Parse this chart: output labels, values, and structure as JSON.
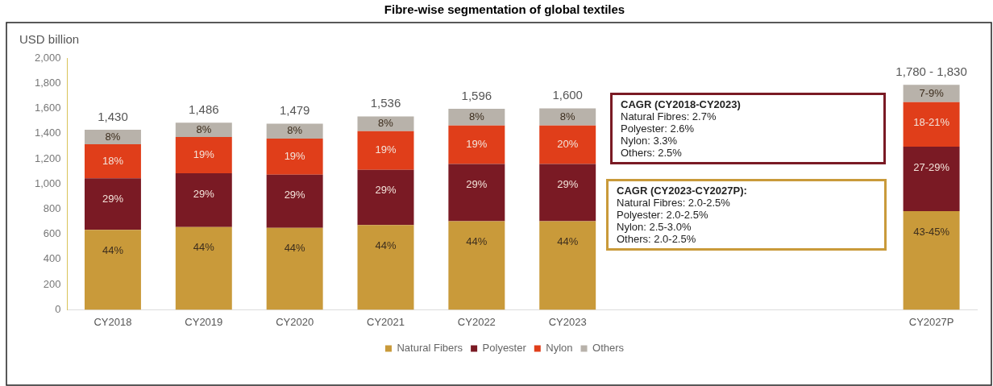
{
  "chart_data": {
    "type": "bar",
    "stacked": true,
    "title": "Fibre-wise segmentation of global textiles",
    "ylabel": "USD billion",
    "categories": [
      "CY2018",
      "CY2019",
      "CY2020",
      "CY2021",
      "CY2022",
      "CY2023",
      null,
      null,
      null,
      "CY2027P"
    ],
    "series": [
      {
        "name": "Natural Fibers",
        "color": "#c99a3a",
        "values": [
          634,
          657,
          650,
          673,
          703,
          703,
          null,
          null,
          null,
          784
        ]
      },
      {
        "name": "Polyester",
        "color": "#7a1a24",
        "values": [
          411,
          427,
          423,
          438,
          455,
          455,
          null,
          null,
          null,
          512
        ]
      },
      {
        "name": "Nylon",
        "color": "#e03e1a",
        "values": [
          270,
          288,
          287,
          308,
          306,
          306,
          null,
          null,
          null,
          353
        ]
      },
      {
        "name": "Others",
        "color": "#b8b2aa",
        "values": [
          115,
          114,
          119,
          117,
          132,
          136,
          null,
          null,
          null,
          138
        ]
      }
    ],
    "totals": [
      "1,430",
      "1,486",
      "1,479",
      "1,536",
      "1,596",
      "1,600",
      null,
      null,
      null,
      "1,780 - 1,830"
    ],
    "ylim": [
      0,
      2000
    ],
    "yticks": [
      {
        "value": 0,
        "label": "0"
      },
      {
        "value": 200,
        "label": "200"
      },
      {
        "value": 400,
        "label": "400"
      },
      {
        "value": 600,
        "label": "600"
      },
      {
        "value": 800,
        "label": "800"
      },
      {
        "value": 1000,
        "label": "1,000"
      },
      {
        "value": 1200,
        "label": "1,200"
      },
      {
        "value": 1400,
        "label": "1,400"
      },
      {
        "value": 1600,
        "label": "1,600"
      },
      {
        "value": 1800,
        "label": "1,800"
      },
      {
        "value": 2000,
        "label": "2,000"
      }
    ],
    "grid": false,
    "legend": "bottom",
    "annotations": [
      "CAGR (CY2018-CY2023)\nNatural Fibres: 2.7%\nPolyester: 2.6%\nNylon: 3.3%\nOthers: 2.5%",
      "CAGR (CY2023-CY2027P):\nNatural Fibres: 2.0-2.5%\nPolyester: 2.0-2.5%\nNylon: 2.5-3.0%\nOthers: 2.0-2.5%",
      {
        "text": "44%",
        "x": "CY2018",
        "y": 634
      },
      {
        "text": "29%",
        "x": "CY2018",
        "y": 1045
      },
      {
        "text": "18%",
        "x": "CY2018",
        "y": 1315
      },
      {
        "text": "8%",
        "x": "CY2018",
        "y": 1430
      },
      {
        "text": "44%",
        "x": "CY2019",
        "y": 657
      },
      {
        "text": "29%",
        "x": "CY2019",
        "y": 1084
      },
      {
        "text": "19%",
        "x": "CY2019",
        "y": 1372
      },
      {
        "text": "8%",
        "x": "CY2019",
        "y": 1486
      },
      {
        "text": "44%",
        "x": "CY2020",
        "y": 650
      },
      {
        "text": "29%",
        "x": "CY2020",
        "y": 1073
      },
      {
        "text": "19%",
        "x": "CY2020",
        "y": 1360
      },
      {
        "text": "8%",
        "x": "CY2020",
        "y": 1479
      },
      {
        "text": "44%",
        "x": "CY2021",
        "y": 673
      },
      {
        "text": "29%",
        "x": "CY2021",
        "y": 1111
      },
      {
        "text": "19%",
        "x": "CY2021",
        "y": 1419
      },
      {
        "text": "8%",
        "x": "CY2021",
        "y": 1536
      },
      {
        "text": "44%",
        "x": "CY2022",
        "y": 703
      },
      {
        "text": "29%",
        "x": "CY2022",
        "y": 1158
      },
      {
        "text": "19%",
        "x": "CY2022",
        "y": 1464
      },
      {
        "text": "8%",
        "x": "CY2022",
        "y": 1596
      },
      {
        "text": "44%",
        "x": "CY2023",
        "y": 703
      },
      {
        "text": "29%",
        "x": "CY2023",
        "y": 1158
      },
      {
        "text": "20%",
        "x": "CY2023",
        "y": 1464
      },
      {
        "text": "8%",
        "x": "CY2023",
        "y": 1600
      },
      {
        "text": "43-45%",
        "x": "CY2027P",
        "y": 784
      },
      {
        "text": "27-29%",
        "x": "CY2027P",
        "y": 1296
      },
      {
        "text": "18-21%",
        "x": "CY2027P",
        "y": 1649
      },
      {
        "text": "7-9%",
        "x": "CY2027P",
        "y": 1787
      }
    ]
  }
}
